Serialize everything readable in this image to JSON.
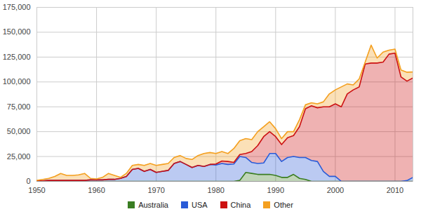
{
  "chart_data": {
    "type": "area",
    "stacked": true,
    "grid": true,
    "legend": "bottom",
    "x": [
      1950,
      1951,
      1952,
      1953,
      1954,
      1955,
      1956,
      1957,
      1958,
      1959,
      1960,
      1961,
      1962,
      1963,
      1964,
      1965,
      1966,
      1967,
      1968,
      1969,
      1970,
      1971,
      1972,
      1973,
      1974,
      1975,
      1976,
      1977,
      1978,
      1979,
      1980,
      1981,
      1982,
      1983,
      1984,
      1985,
      1986,
      1987,
      1988,
      1989,
      1990,
      1991,
      1992,
      1993,
      1994,
      1995,
      1996,
      1997,
      1998,
      1999,
      2000,
      2001,
      2002,
      2003,
      2004,
      2005,
      2006,
      2007,
      2008,
      2009,
      2010,
      2011,
      2012,
      2013
    ],
    "xlim": [
      1950,
      2013
    ],
    "xticks": [
      1950,
      1960,
      1970,
      1980,
      1990,
      2000,
      2010
    ],
    "ylim": [
      0,
      175000
    ],
    "yticks": [
      0,
      {
        "value": 25000,
        "label": "25,000"
      },
      {
        "value": 50000,
        "label": "50,000"
      },
      {
        "value": 75000,
        "label": "75,000"
      },
      {
        "value": 100000,
        "label": "100,000"
      },
      {
        "value": 125000,
        "label": "125,000"
      },
      {
        "value": 150000,
        "label": "150,000"
      },
      {
        "value": 175000,
        "label": "175,000"
      }
    ],
    "series": [
      {
        "name": "Australia",
        "color": "#3a7d22",
        "values": [
          0,
          0,
          0,
          0,
          0,
          0,
          0,
          0,
          0,
          0,
          0,
          0,
          0,
          0,
          0,
          0,
          0,
          0,
          0,
          0,
          0,
          0,
          0,
          0,
          0,
          0,
          0,
          0,
          0,
          0,
          0,
          0,
          0,
          0,
          1000,
          9000,
          8000,
          7000,
          7000,
          7000,
          6000,
          4000,
          4000,
          7000,
          3000,
          2000,
          0,
          0,
          0,
          0,
          0,
          0,
          0,
          0,
          0,
          0,
          0,
          0,
          0,
          0,
          0,
          0,
          0,
          0
        ]
      },
      {
        "name": "USA",
        "color": "#2a5bd7",
        "values": [
          500,
          500,
          1000,
          1000,
          1000,
          1000,
          1000,
          1000,
          1000,
          1500,
          1500,
          1500,
          2000,
          2000,
          3000,
          5000,
          12000,
          13000,
          10000,
          12000,
          9000,
          10000,
          11000,
          18000,
          20000,
          17000,
          14000,
          16000,
          15000,
          17000,
          16500,
          18000,
          17000,
          17500,
          24000,
          15000,
          11000,
          11000,
          11500,
          21000,
          22000,
          16000,
          20000,
          18000,
          21000,
          22000,
          21000,
          20000,
          10000,
          5000,
          5000,
          0,
          0,
          0,
          0,
          0,
          0,
          0,
          0,
          0,
          0,
          0,
          800,
          4000
        ]
      },
      {
        "name": "China",
        "color": "#cc1111",
        "values": [
          0,
          0,
          0,
          0,
          0,
          0,
          0,
          0,
          0,
          0,
          0,
          0,
          0,
          0,
          0,
          0,
          0,
          0,
          0,
          0,
          0,
          0,
          0,
          0,
          0,
          0,
          0,
          0,
          0,
          0,
          1000,
          2500,
          3000,
          1500,
          2000,
          4000,
          11000,
          18000,
          26500,
          22000,
          17000,
          17000,
          20000,
          21000,
          31000,
          49000,
          55000,
          54000,
          65000,
          70000,
          73000,
          75000,
          88000,
          92000,
          95000,
          118000,
          119000,
          119000,
          120000,
          128000,
          129000,
          105000,
          100000,
          100000
        ]
      },
      {
        "name": "Other",
        "color": "#f4a020",
        "values": [
          500,
          1500,
          2000,
          4000,
          7000,
          5000,
          5000,
          5500,
          7000,
          1500,
          1000,
          2500,
          6000,
          4000,
          1000,
          3000,
          4000,
          4000,
          6000,
          6000,
          7000,
          7000,
          7000,
          6000,
          6000,
          6000,
          8000,
          10000,
          13000,
          12000,
          10500,
          9500,
          8000,
          14000,
          14000,
          15000,
          12000,
          14000,
          10000,
          10000,
          8000,
          6000,
          6000,
          4000,
          7000,
          4000,
          3000,
          4000,
          5000,
          13000,
          14000,
          20000,
          10000,
          5000,
          8000,
          2000,
          18000,
          5000,
          10000,
          4000,
          4000,
          7000,
          9000,
          6000
        ]
      }
    ]
  }
}
